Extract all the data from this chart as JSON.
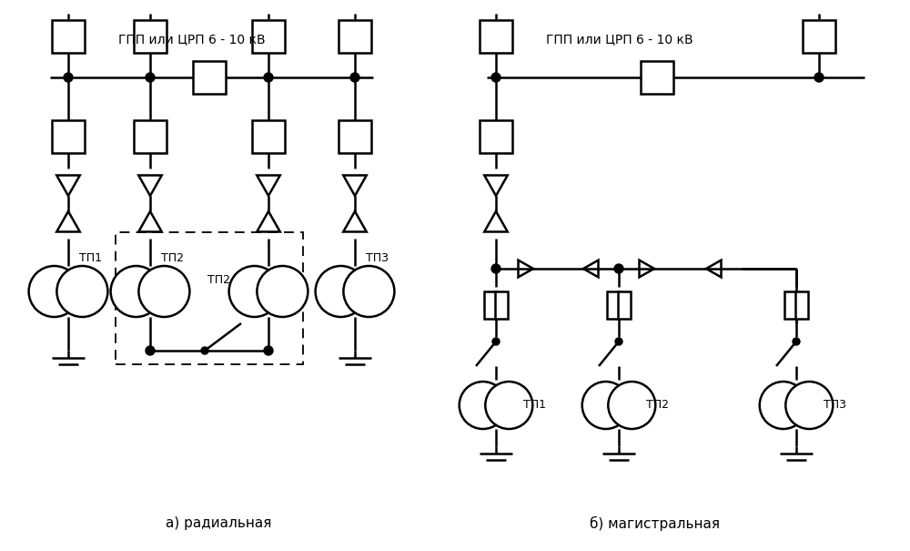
{
  "bg_color": "#ffffff",
  "line_color": "#000000",
  "label_a": "а) радиальная",
  "label_b": "б) магистральная",
  "bus_label_a": "ГПП или ЦРП 6 - 10 кВ",
  "bus_label_b": "ГПП или ЦРП 6 - 10 кВ",
  "tp_labels_a": [
    "ТП1",
    "ТП2",
    "ТП3"
  ],
  "tp_labels_b": [
    "ТП1",
    "ТП2",
    "ТП3"
  ],
  "figsize": [
    10.0,
    6.05
  ],
  "dpi": 100
}
